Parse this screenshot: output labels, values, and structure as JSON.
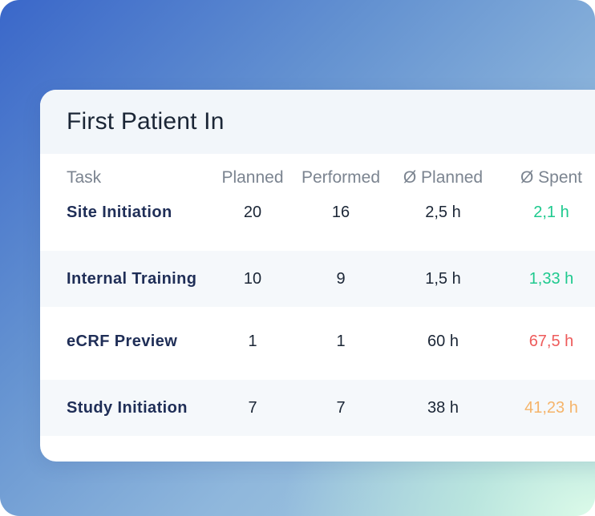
{
  "card": {
    "title": "First Patient In"
  },
  "table": {
    "headers": {
      "task": "Task",
      "planned": "Planned",
      "performed": "Performed",
      "avg_planned": "Ø Planned",
      "avg_spent": "Ø Spent"
    },
    "rows": [
      {
        "task": "Site Initiation",
        "planned": "20",
        "performed": "16",
        "avg_planned": "2,5 h",
        "avg_spent": "2,1 h",
        "spent_status": "green"
      },
      {
        "task": "Internal Training",
        "planned": "10",
        "performed": "9",
        "avg_planned": "1,5 h",
        "avg_spent": "1,33 h",
        "spent_status": "green"
      },
      {
        "task": "eCRF Preview",
        "planned": "1",
        "performed": "1",
        "avg_planned": "60 h",
        "avg_spent": "67,5 h",
        "spent_status": "red"
      },
      {
        "task": "Study Initiation",
        "planned": "7",
        "performed": "7",
        "avg_planned": "38 h",
        "avg_spent": "41,23 h",
        "spent_status": "orange"
      }
    ]
  },
  "colors": {
    "green": "#1ec98e",
    "red": "#ee5b5b",
    "orange": "#f5b46a",
    "text_dark": "#1b2636",
    "task_text": "#1f2e57",
    "header_text": "#7b8490"
  }
}
